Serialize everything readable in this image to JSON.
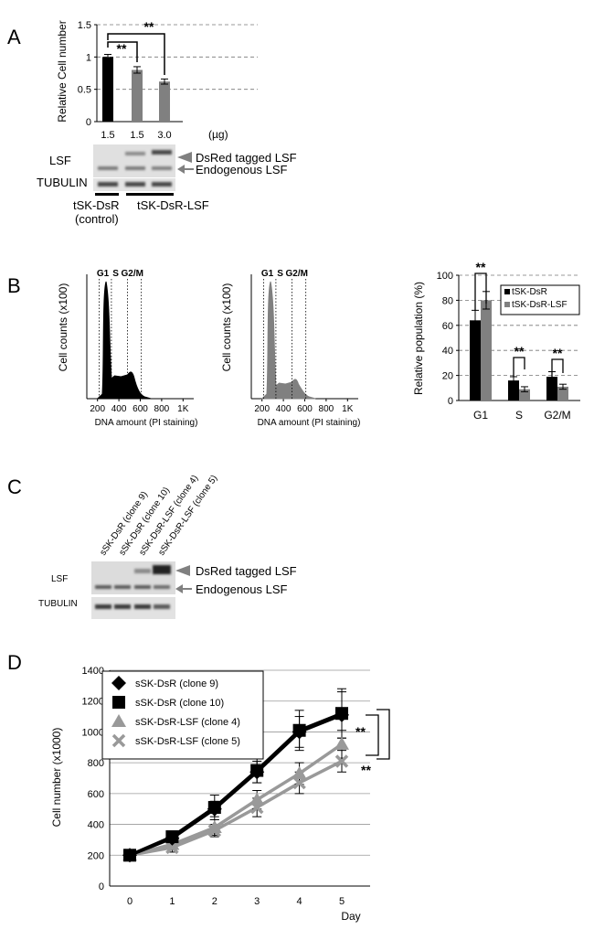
{
  "panels": {
    "A": {
      "label": "A",
      "chart_data": {
        "type": "bar",
        "ylabel": "Relative Cell number",
        "ylim": [
          0,
          1.5
        ],
        "yticks": [
          "0",
          "0.5",
          "1",
          "1.5"
        ],
        "categories": [
          "1.5",
          "1.5",
          "3.0"
        ],
        "unit": "(µg)",
        "values": [
          1.0,
          0.8,
          0.62
        ],
        "errors": [
          0.04,
          0.05,
          0.04
        ],
        "colors": [
          "#000000",
          "#808080",
          "#808080"
        ],
        "significance": [
          "**",
          "**"
        ]
      },
      "blot": {
        "lsf_label": "LSF",
        "tubulin_label": "TUBULIN",
        "dsred_label": "DsRed tagged LSF",
        "endogenous_label": "Endogenous LSF",
        "group1_line1": "tSK-DsR",
        "group1_line2": "(control)",
        "group2": "tSK-DsR-LSF"
      }
    },
    "B": {
      "label": "B",
      "histograms": {
        "ylabel": "Cell counts (x100)",
        "xlabel": "DNA amount (PI staining)",
        "xticks": [
          "200",
          "400",
          "600",
          "800",
          "1K"
        ],
        "gate_labels": [
          "G1",
          "S",
          "G2/M"
        ],
        "colors": [
          "#000000",
          "#808080"
        ]
      },
      "chart_data": {
        "type": "bar",
        "ylabel": "Relative population (%)",
        "ylim": [
          0,
          100
        ],
        "yticks": [
          "0",
          "20",
          "40",
          "60",
          "80",
          "100"
        ],
        "categories": [
          "G1",
          "S",
          "G2/M"
        ],
        "series": [
          {
            "name": "tSK-DsR",
            "values": [
              64,
              16,
              19
            ],
            "errors": [
              8,
              3,
              4
            ],
            "color": "#000000"
          },
          {
            "name": "tSK-DsR-LSF",
            "values": [
              80,
              9,
              11
            ],
            "errors": [
              7,
              2,
              2
            ],
            "color": "#808080"
          }
        ],
        "significance": [
          "**",
          "**",
          "**"
        ]
      }
    },
    "C": {
      "label": "C",
      "lanes": [
        "sSK-DsR (clone 9)",
        "sSK-DsR (clone 10)",
        "sSK-DsR-LSF (clone 4)",
        "sSK-DsR-LSF (clone 5)"
      ],
      "lsf_label": "LSF",
      "tubulin_label": "TUBULIN",
      "dsred_label": "DsRed tagged LSF",
      "endogenous_label": "Endogenous LSF"
    },
    "D": {
      "label": "D",
      "chart_data": {
        "type": "line",
        "ylabel": "Cell number (x1000)",
        "xlabel": "Day",
        "ylim": [
          0,
          1400
        ],
        "yticks": [
          "0",
          "200",
          "400",
          "600",
          "800",
          "1000",
          "1200",
          "1400"
        ],
        "x": [
          0,
          1,
          2,
          3,
          4,
          5
        ],
        "xticks": [
          "0",
          "1",
          "2",
          "3",
          "4",
          "5"
        ],
        "series": [
          {
            "name": "sSK-DsR (clone 9)",
            "values": [
              200,
              310,
              500,
              740,
              1000,
              1110
            ],
            "errors": [
              20,
              30,
              50,
              70,
              100,
              150
            ],
            "color": "#000000",
            "marker": "diamond"
          },
          {
            "name": "sSK-DsR (clone 10)",
            "values": [
              200,
              320,
              510,
              750,
              1010,
              1120
            ],
            "errors": [
              20,
              30,
              80,
              80,
              130,
              160
            ],
            "color": "#000000",
            "marker": "square"
          },
          {
            "name": "sSK-DsR-LSF (clone 4)",
            "values": [
              200,
              270,
              380,
              560,
              730,
              920
            ],
            "errors": [
              20,
              30,
              50,
              60,
              70,
              90
            ],
            "color": "#999999",
            "marker": "triangle"
          },
          {
            "name": "sSK-DsR-LSF (clone 5)",
            "values": [
              200,
              250,
              360,
              510,
              670,
              810
            ],
            "errors": [
              20,
              30,
              40,
              60,
              70,
              70
            ],
            "color": "#999999",
            "marker": "cross"
          }
        ],
        "significance": [
          "**",
          "**"
        ]
      }
    }
  }
}
